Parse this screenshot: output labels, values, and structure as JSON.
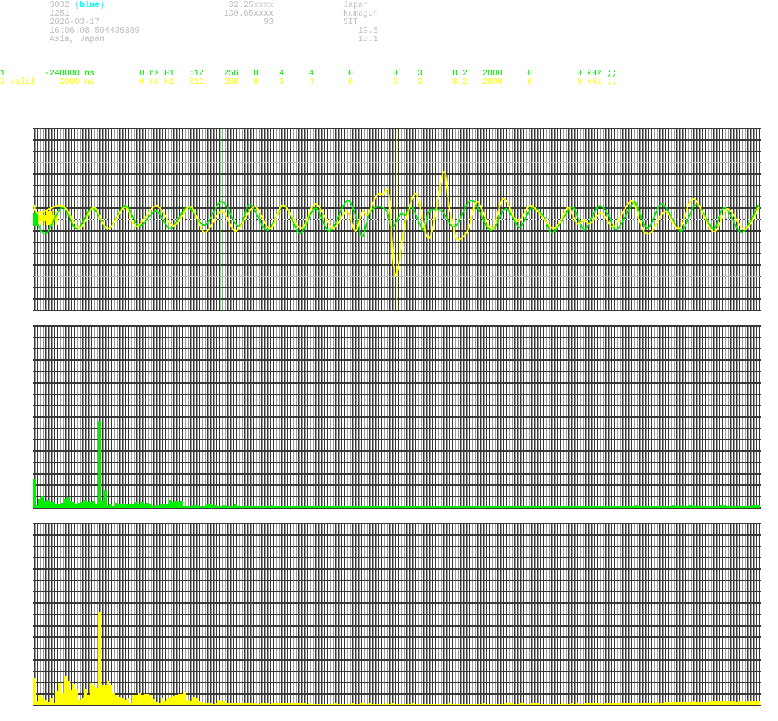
{
  "header": {
    "col1": [
      "3032",
      "1251",
      "2026-03-17",
      "16:06:08.504436389",
      "Asia, Japan"
    ],
    "col1_tag": "(blue)",
    "col2": [
      "32.25xxxx",
      "130.65xxxx",
      "93"
    ],
    "col3": [
      "Japan",
      "Kumagun",
      "SIT"
    ],
    "col3_right": [
      "19.5",
      "10.1"
    ]
  },
  "channels": [
    {
      "fields": [
        "1",
        "-248000 ns",
        "0 ns H1",
        "512",
        "256",
        "8",
        "4",
        "4",
        "0",
        "0",
        "3",
        "8.2",
        "2000",
        "0",
        "0 kHz ;;"
      ],
      "color": "#00ee00"
    },
    {
      "fields": [
        "2 valid",
        "2000 ns",
        "0 ns H1",
        "512",
        "256",
        "8",
        "3",
        "4",
        "0",
        "3",
        "3",
        "8.2",
        "2000",
        "0",
        "0 kHz ;;"
      ],
      "color": "#ffff00"
    }
  ],
  "colors": {
    "grid": "#383838",
    "ch1": "#00ee00",
    "ch2": "#ffff00",
    "bars1": "#00ee00",
    "bars2": "#ffff00",
    "reference": "#bdbdbd",
    "center": "#ffffff"
  },
  "chart_data": [
    {
      "type": "line",
      "title": "",
      "xlabel": "",
      "ylabel": "",
      "xlim": [
        0,
        511
      ],
      "ylim": [
        -128,
        128
      ],
      "grid": true,
      "reference_lines": [
        80,
        -80
      ],
      "markers": [
        {
          "series": 0,
          "x": 131
        },
        {
          "series": 1,
          "x": 255
        }
      ],
      "series": [
        {
          "color": "#00ee00",
          "points": [
            [
              0,
              6
            ],
            [
              8,
              -20
            ],
            [
              20,
              17
            ],
            [
              30,
              -13
            ],
            [
              41,
              16
            ],
            [
              52,
              -13
            ],
            [
              64,
              19
            ],
            [
              74,
              -9
            ],
            [
              86,
              12
            ],
            [
              96,
              -13
            ],
            [
              108,
              17
            ],
            [
              120,
              -8
            ],
            [
              132,
              25
            ],
            [
              144,
              -10
            ],
            [
              152,
              21
            ],
            [
              164,
              -15
            ],
            [
              176,
              20
            ],
            [
              187,
              -19
            ],
            [
              198,
              16
            ],
            [
              208,
              -16
            ],
            [
              220,
              26
            ],
            [
              226,
              7
            ],
            [
              231,
              -24
            ],
            [
              236,
              9
            ],
            [
              242,
              18
            ],
            [
              248,
              12
            ],
            [
              252,
              -11
            ],
            [
              258,
              8
            ],
            [
              261,
              6
            ],
            [
              266,
              17
            ],
            [
              274,
              -15
            ],
            [
              278,
              11
            ],
            [
              287,
              12
            ],
            [
              296,
              -10
            ],
            [
              308,
              27
            ],
            [
              321,
              -15
            ],
            [
              331,
              14
            ],
            [
              336,
              6
            ],
            [
              342,
              -11
            ],
            [
              350,
              16
            ],
            [
              358,
              6
            ],
            [
              365,
              -18
            ],
            [
              378,
              17
            ],
            [
              384,
              -4
            ],
            [
              388,
              -14
            ],
            [
              397,
              18
            ],
            [
              404,
              7
            ],
            [
              410,
              -14
            ],
            [
              421,
              22
            ],
            [
              424,
              20
            ],
            [
              432,
              -12
            ],
            [
              442,
              22
            ],
            [
              455,
              -16
            ],
            [
              466,
              21
            ],
            [
              478,
              -13
            ],
            [
              486,
              17
            ],
            [
              498,
              -18
            ],
            [
              510,
              21
            ]
          ]
        },
        {
          "color": "#ffff00",
          "points": [
            [
              0,
              21
            ],
            [
              3,
              9
            ],
            [
              20,
              19
            ],
            [
              32,
              -12
            ],
            [
              42,
              17
            ],
            [
              52,
              -13
            ],
            [
              64,
              17
            ],
            [
              72,
              -10
            ],
            [
              86,
              19
            ],
            [
              98,
              -9
            ],
            [
              110,
              18
            ],
            [
              120,
              -18
            ],
            [
              132,
              12
            ],
            [
              142,
              -16
            ],
            [
              155,
              18
            ],
            [
              166,
              -13
            ],
            [
              175,
              20
            ],
            [
              188,
              -12
            ],
            [
              198,
              22
            ],
            [
              210,
              -12
            ],
            [
              220,
              12
            ],
            [
              226,
              -16
            ],
            [
              231,
              11
            ],
            [
              235,
              7
            ],
            [
              241,
              34
            ],
            [
              246,
              36
            ],
            [
              248,
              42
            ],
            [
              250,
              29
            ],
            [
              254,
              -78
            ],
            [
              260,
              -18
            ],
            [
              262,
              1
            ],
            [
              269,
              36
            ],
            [
              278,
              -26
            ],
            [
              288,
              66
            ],
            [
              292,
              19
            ],
            [
              297,
              -26
            ],
            [
              302,
              -24
            ],
            [
              306,
              -11
            ],
            [
              312,
              25
            ],
            [
              322,
              -14
            ],
            [
              330,
              29
            ],
            [
              338,
              2
            ],
            [
              342,
              -1
            ],
            [
              350,
              19
            ],
            [
              364,
              -11
            ],
            [
              370,
              -4
            ],
            [
              376,
              17
            ],
            [
              382,
              -6
            ],
            [
              387,
              -1
            ],
            [
              391,
              -6
            ],
            [
              398,
              9
            ],
            [
              402,
              4
            ],
            [
              408,
              -10
            ],
            [
              420,
              26
            ],
            [
              426,
              -1
            ],
            [
              430,
              -19
            ],
            [
              435,
              -16
            ],
            [
              444,
              11
            ],
            [
              454,
              -13
            ],
            [
              464,
              29
            ],
            [
              478,
              -17
            ],
            [
              488,
              15
            ],
            [
              500,
              -14
            ],
            [
              510,
              17
            ]
          ]
        }
      ]
    },
    {
      "type": "bar",
      "title": "",
      "xlabel": "",
      "ylabel": "",
      "xlim": [
        0,
        255
      ],
      "ylim": [
        0,
        256
      ],
      "grid": true,
      "color": "#00ee00",
      "values": [
        40,
        4,
        12,
        17,
        10,
        11,
        8,
        8,
        6,
        5,
        7,
        12,
        16,
        10,
        8,
        5,
        7,
        8,
        11,
        9,
        8,
        10,
        5,
        122,
        10,
        25,
        4,
        5,
        3,
        7,
        6,
        5,
        6,
        5,
        5,
        5,
        8,
        5,
        8,
        5,
        7,
        5,
        3,
        4,
        4,
        5,
        6,
        6,
        11,
        9,
        10,
        9,
        10,
        3,
        3,
        2,
        4,
        4,
        2,
        3,
        3,
        5,
        5,
        4,
        4,
        3,
        2,
        4,
        3,
        2,
        3,
        5,
        3,
        2,
        2,
        2,
        3,
        3,
        2,
        2,
        3,
        2,
        2,
        3,
        4,
        3,
        3,
        2,
        3,
        2,
        3,
        2,
        3,
        2,
        2,
        2,
        3,
        2,
        3,
        2,
        2,
        2,
        2,
        2,
        3,
        3,
        3,
        2,
        3,
        3,
        2,
        2,
        3,
        2,
        2,
        3,
        2,
        2,
        2,
        3,
        2,
        2,
        2,
        3,
        2,
        2,
        2,
        2,
        2,
        3,
        2,
        2,
        2,
        2,
        3,
        2,
        2,
        2,
        2,
        2,
        2,
        2,
        2,
        3,
        2,
        3,
        2,
        2,
        2,
        2,
        3,
        2,
        2,
        2,
        3,
        3,
        2,
        2,
        2,
        2,
        3,
        2,
        2,
        3,
        2,
        3,
        2,
        2,
        2,
        2,
        3,
        3,
        3,
        3,
        3,
        3,
        3,
        3,
        3,
        3,
        3,
        2,
        3,
        2,
        2,
        3,
        3,
        3,
        3,
        3,
        3,
        3,
        3,
        3,
        3,
        3,
        3,
        3,
        3,
        3,
        3,
        2,
        3,
        3,
        3,
        3,
        3,
        3,
        3,
        3,
        3,
        3,
        4,
        3,
        3,
        3,
        3,
        3,
        2,
        3,
        3,
        3,
        3,
        3,
        3,
        4,
        3,
        3,
        4,
        3,
        2,
        4,
        4,
        3,
        3,
        3,
        3,
        3,
        3,
        3,
        3,
        3,
        4,
        4,
        3,
        3,
        3,
        3,
        3,
        3,
        3,
        3,
        3,
        4,
        4,
        4
      ]
    },
    {
      "type": "bar",
      "title": "",
      "xlabel": "",
      "ylabel": "",
      "xlim": [
        0,
        255
      ],
      "ylim": [
        0,
        256
      ],
      "grid": true,
      "color": "#ffff00",
      "values": [
        38,
        6,
        15,
        12,
        7,
        5,
        11,
        4,
        20,
        32,
        17,
        41,
        34,
        21,
        30,
        23,
        7,
        10,
        23,
        14,
        31,
        29,
        24,
        131,
        29,
        29,
        34,
        28,
        18,
        14,
        12,
        10,
        8,
        11,
        3,
        15,
        14,
        17,
        15,
        16,
        16,
        14,
        9,
        5,
        4,
        11,
        6,
        10,
        12,
        13,
        14,
        16,
        16,
        19,
        7,
        6,
        12,
        10,
        6,
        5,
        3,
        3,
        4,
        2,
        4,
        7,
        6,
        6,
        3,
        4,
        4,
        3,
        4,
        4,
        3,
        4,
        3,
        3,
        4,
        2,
        3,
        4,
        3,
        2,
        4,
        3,
        3,
        3,
        4,
        3,
        4,
        3,
        3,
        4,
        3,
        3,
        2,
        3,
        2,
        2,
        2,
        2,
        2,
        2,
        2,
        2,
        3,
        2,
        2,
        2,
        2,
        2,
        3,
        2,
        2,
        3,
        3,
        2,
        3,
        2,
        2,
        2,
        2,
        2,
        3,
        2,
        3,
        2,
        2,
        2,
        2,
        2,
        2,
        3,
        2,
        2,
        2,
        2,
        2,
        2,
        2,
        2,
        2,
        2,
        2,
        2,
        3,
        2,
        2,
        2,
        2,
        2,
        2,
        2,
        2,
        2,
        2,
        2,
        3,
        2,
        2,
        2,
        2,
        2,
        2,
        2,
        3,
        3,
        3,
        2,
        2,
        3,
        3,
        2,
        2,
        3,
        3,
        3,
        2,
        2,
        2,
        2,
        2,
        2,
        2,
        2,
        3,
        2,
        2,
        3,
        2,
        3,
        2,
        2,
        3,
        3,
        3,
        3,
        3,
        3,
        2,
        3,
        3,
        3,
        4,
        3,
        4,
        4,
        3,
        3,
        4,
        3,
        4,
        3,
        4,
        4,
        4,
        4,
        4,
        5,
        4,
        4,
        5,
        5,
        5,
        5,
        5,
        5,
        5,
        5,
        5,
        5,
        6,
        5,
        5,
        5,
        5,
        5,
        6,
        6,
        6,
        6,
        6,
        6,
        6,
        6,
        6,
        5,
        6,
        6,
        5,
        6,
        6,
        6,
        6,
        6
      ]
    }
  ]
}
